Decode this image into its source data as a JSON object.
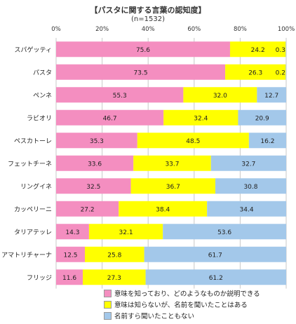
{
  "chart_data": {
    "type": "bar",
    "orientation": "horizontal",
    "stacked": true,
    "title": "【パスタに関する言葉の認知度】",
    "subtitle": "(n=1532)",
    "xlim": [
      0,
      100
    ],
    "x_ticks": [
      "0%",
      "20%",
      "40%",
      "60%",
      "80%",
      "100%"
    ],
    "grid": true,
    "legend_position": "bottom",
    "categories": [
      "スパゲッティ",
      "パスタ",
      "ペンネ",
      "ラビオリ",
      "ペスカトーレ",
      "フェットチーネ",
      "リングイネ",
      "カッペリーニ",
      "タリアテッレ",
      "アマトリチャーナ",
      "フリッジ"
    ],
    "series": [
      {
        "name": "意味を知っており、どのようなものか説明できる",
        "color": "#f48ec0",
        "values": [
          75.6,
          73.5,
          55.3,
          46.7,
          35.3,
          33.6,
          32.5,
          27.2,
          14.3,
          12.5,
          11.6
        ]
      },
      {
        "name": "意味は知らないが、名前を聞いたことはある",
        "color": "#ffff00",
        "values": [
          24.2,
          26.3,
          32.0,
          32.4,
          48.5,
          33.7,
          36.7,
          38.4,
          32.1,
          25.8,
          27.3
        ]
      },
      {
        "name": "名前すら聞いたこともない",
        "color": "#a3c8ea",
        "values": [
          0.3,
          0.2,
          12.7,
          20.9,
          16.2,
          32.7,
          30.8,
          34.4,
          53.6,
          61.7,
          61.2
        ]
      }
    ]
  }
}
